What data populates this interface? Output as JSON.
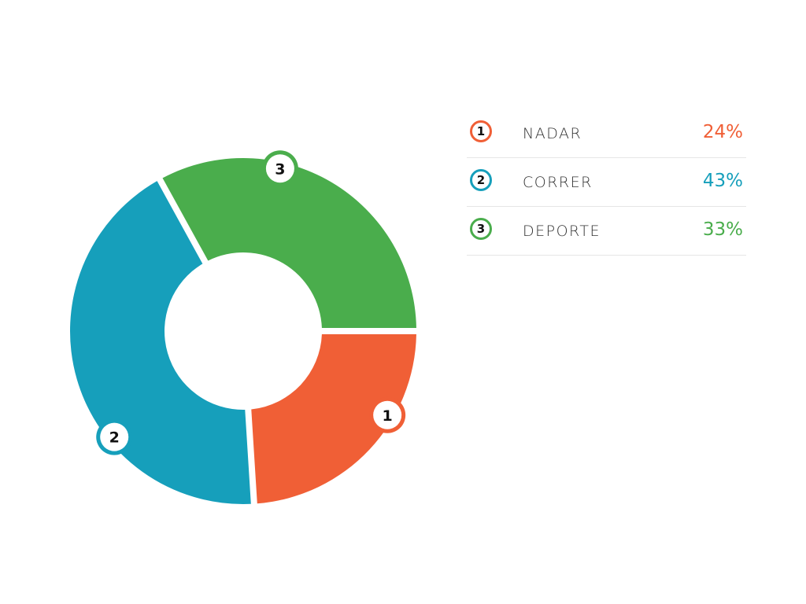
{
  "chart_data": {
    "type": "pie",
    "variant": "donut",
    "title": "",
    "categories": [
      "NADAR",
      "CORRER",
      "DEPORTE"
    ],
    "values": [
      24,
      43,
      33
    ],
    "unit": "%",
    "markers": [
      "1",
      "2",
      "3"
    ],
    "colors": [
      "#f05f36",
      "#169fbb",
      "#4aad4c"
    ],
    "legend_position": "right"
  },
  "legend": {
    "items": [
      {
        "number": "1",
        "label": "NADAR",
        "value": "24%",
        "color": "#f05f36"
      },
      {
        "number": "2",
        "label": "CORRER",
        "value": "43%",
        "color": "#169fbb"
      },
      {
        "number": "3",
        "label": "DEPORTE",
        "value": "33%",
        "color": "#4aad4c"
      }
    ]
  }
}
